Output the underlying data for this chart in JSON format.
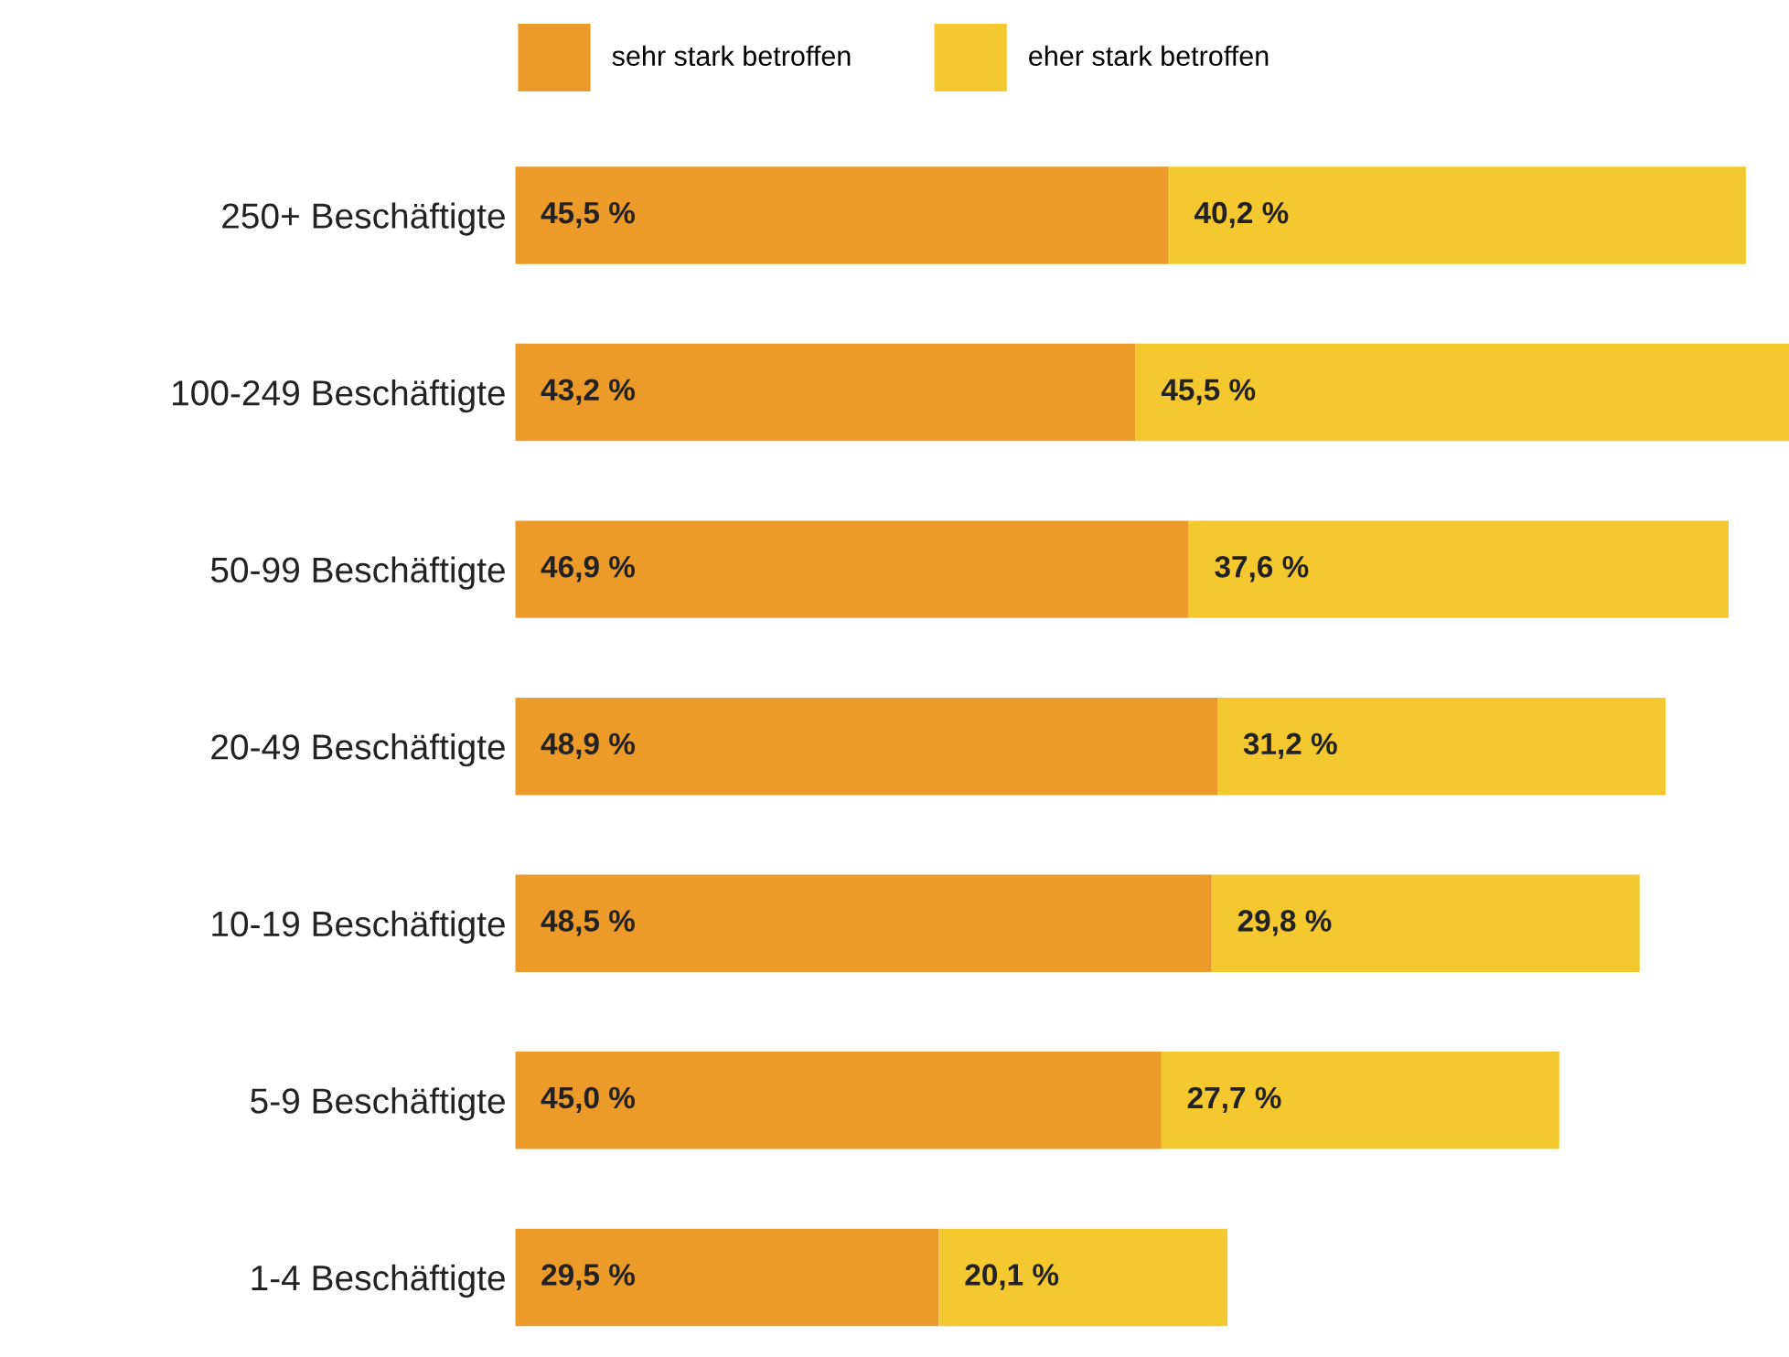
{
  "chart_data": {
    "type": "bar",
    "orientation": "horizontal",
    "stacked": true,
    "legend": "top",
    "grid": false,
    "tick_labels": "y",
    "categories": [
      "250+ Beschäftigte",
      "100-249 Beschäftigte",
      "50-99 Beschäftigte",
      "20-49 Beschäftigte",
      "10-19 Beschäftigte",
      "5-9 Beschäftigte",
      "1-4 Beschäftigte"
    ],
    "series": [
      {
        "name": "sehr stark betroffen",
        "color": "#ec9a29",
        "values": [
          45.5,
          43.2,
          46.9,
          48.9,
          48.5,
          45.0,
          29.5
        ],
        "value_labels": [
          "45,5 %",
          "43,2 %",
          "46,9 %",
          "48,9 %",
          "48,5 %",
          "45,0 %",
          "29,5 %"
        ]
      },
      {
        "name": "eher stark betroffen",
        "color": "#f4c82e",
        "values": [
          40.2,
          45.5,
          37.6,
          31.2,
          29.8,
          27.7,
          20.1
        ],
        "value_labels": [
          "40,2 %",
          "45,5 %",
          "37,6 %",
          "31,2 %",
          "29,8 %",
          "27,7 %",
          "20,1 %"
        ]
      }
    ]
  }
}
